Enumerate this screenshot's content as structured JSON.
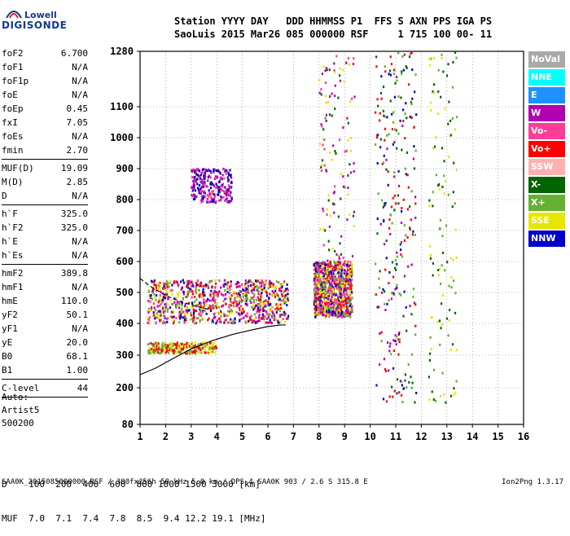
{
  "logo": {
    "top": "Lowell",
    "main": "DIGISONDE"
  },
  "header": {
    "line1": "Station YYYY DAY   DDD HHMMSS P1  FFS S AXN PPS IGA PS",
    "line2": "SaoLuis 2015 Mar26 085 000000 RSF     1 715 100 00- 11"
  },
  "params": [
    {
      "name": "foF2",
      "value": "6.700"
    },
    {
      "name": "foF1",
      "value": "N/A"
    },
    {
      "name": "foF1p",
      "value": "N/A"
    },
    {
      "name": "foE",
      "value": "N/A"
    },
    {
      "name": "foEp",
      "value": "0.45"
    },
    {
      "name": "fxI",
      "value": "7.05"
    },
    {
      "name": "foEs",
      "value": "N/A"
    },
    {
      "name": "fmin",
      "value": "2.70"
    },
    {
      "sep": true
    },
    {
      "name": "MUF(D)",
      "value": "19.09"
    },
    {
      "name": "M(D)",
      "value": "2.85"
    },
    {
      "name": "D",
      "value": "N/A"
    },
    {
      "sep": true
    },
    {
      "name": "h`F",
      "value": "325.0"
    },
    {
      "name": "h`F2",
      "value": "325.0"
    },
    {
      "name": "h`E",
      "value": "N/A"
    },
    {
      "name": "h`Es",
      "value": "N/A"
    },
    {
      "sep": true
    },
    {
      "name": "hmF2",
      "value": "389.8"
    },
    {
      "name": "hmF1",
      "value": "N/A"
    },
    {
      "name": "hmE",
      "value": "110.0"
    },
    {
      "name": "yF2",
      "value": "50.1"
    },
    {
      "name": "yF1",
      "value": "N/A"
    },
    {
      "name": "yE",
      "value": "20.0"
    },
    {
      "name": "B0",
      "value": "68.1"
    },
    {
      "name": "B1",
      "value": "1.00"
    },
    {
      "sep": true
    },
    {
      "name": "C-level",
      "value": "44"
    },
    {
      "sep": true
    }
  ],
  "auto": {
    "line1": "Auto:",
    "line2": "Artist5",
    "line3": "500200"
  },
  "bottom": {
    "d_label": "D",
    "d_values": [
      "100",
      "200",
      "400",
      "600",
      "800",
      "1000",
      "1500",
      "3000"
    ],
    "d_unit": "[km]",
    "muf_label": "MUF",
    "muf_values": [
      "7.0",
      "7.1",
      "7.4",
      "7.8",
      "8.5",
      "9.4",
      "12.2",
      "19.1"
    ],
    "muf_unit": "[MHz]"
  },
  "footer": {
    "left": "SAA0K_2015085000000.RSF / 300fx256h 50 kHz 5.0 km / DPS-4 SAA0K 903 / 2.6 S 315.8 E",
    "right": "Ion2Png 1.3.17"
  },
  "legend": [
    {
      "label": "NoVal",
      "color": "#a9a9a9"
    },
    {
      "label": "NNE",
      "color": "#00ffff"
    },
    {
      "label": "E",
      "color": "#1e90ff"
    },
    {
      "label": "W",
      "color": "#b000b0"
    },
    {
      "label": "Vo-",
      "color": "#ff3d96"
    },
    {
      "label": "Vo+",
      "color": "#ff0000"
    },
    {
      "label": "SSW",
      "color": "#ffb0b0"
    },
    {
      "label": "X-",
      "color": "#006400"
    },
    {
      "label": "X+",
      "color": "#66b032"
    },
    {
      "label": "SSE",
      "color": "#e6e600"
    },
    {
      "label": "NNW",
      "color": "#0000c8"
    }
  ],
  "chart_data": {
    "type": "scatter",
    "xlabel": "",
    "ylabel": "",
    "xlim": [
      1,
      16
    ],
    "ylim": [
      80,
      1280
    ],
    "x_ticks": [
      "1",
      "2",
      "3",
      "4",
      "5",
      "6",
      "7",
      "8",
      "9",
      "10",
      "11",
      "12",
      "13",
      "14",
      "15",
      "16"
    ],
    "y_ticks": [
      80,
      200,
      300,
      400,
      500,
      600,
      700,
      800,
      900,
      1000,
      1100,
      1280
    ],
    "y_scale": "nonlinear (ionogram virtual height)",
    "grid": "dotted",
    "traces": [
      {
        "name": "",
        "kind": "profile-solid",
        "x": [
          1.0,
          1.6,
          2.3,
          3.0,
          3.8,
          4.6,
          5.4,
          6.0,
          6.5,
          6.7
        ],
        "y": [
          240,
          260,
          290,
          320,
          345,
          365,
          380,
          390,
          395,
          395
        ]
      },
      {
        "name": "",
        "kind": "profile-dashed",
        "x": [
          1.0,
          1.4,
          2.0,
          2.6,
          3.2,
          3.7
        ],
        "y": [
          545,
          520,
          490,
          470,
          455,
          445
        ]
      }
    ],
    "clusters": [
      {
        "x": [
          1.3,
          6.8
        ],
        "y": [
          400,
          540
        ],
        "density": "high",
        "colors": [
          "#ff0000",
          "#ff3d96",
          "#e6e600",
          "#b000b0",
          "#0000c8",
          "#66b032"
        ]
      },
      {
        "x": [
          7.8,
          9.3
        ],
        "y": [
          420,
          600
        ],
        "density": "high",
        "colors": [
          "#ff0000",
          "#ff3d96",
          "#b000b0",
          "#0000c8",
          "#e6e600",
          "#66b032"
        ]
      },
      {
        "x": [
          3.0,
          4.6
        ],
        "y": [
          790,
          900
        ],
        "density": "medium",
        "colors": [
          "#b000b0",
          "#ff3d96",
          "#0000c8"
        ]
      },
      {
        "x": [
          1.3,
          4.0
        ],
        "y": [
          305,
          340
        ],
        "density": "medium",
        "colors": [
          "#ff0000",
          "#66b032",
          "#e6e600"
        ]
      },
      {
        "x": [
          8.0,
          9.4
        ],
        "y": [
          600,
          1280
        ],
        "density": "low",
        "colors": [
          "#ff3d96",
          "#b000b0",
          "#e6e600",
          "#006400"
        ]
      },
      {
        "x": [
          10.2,
          11.8
        ],
        "y": [
          150,
          1280
        ],
        "density": "medium",
        "colors": [
          "#b000b0",
          "#006400",
          "#66b032",
          "#ff0000",
          "#0000c8"
        ]
      },
      {
        "x": [
          12.3,
          13.4
        ],
        "y": [
          150,
          1280
        ],
        "density": "low",
        "colors": [
          "#e6e600",
          "#66b032",
          "#006400"
        ]
      }
    ]
  }
}
